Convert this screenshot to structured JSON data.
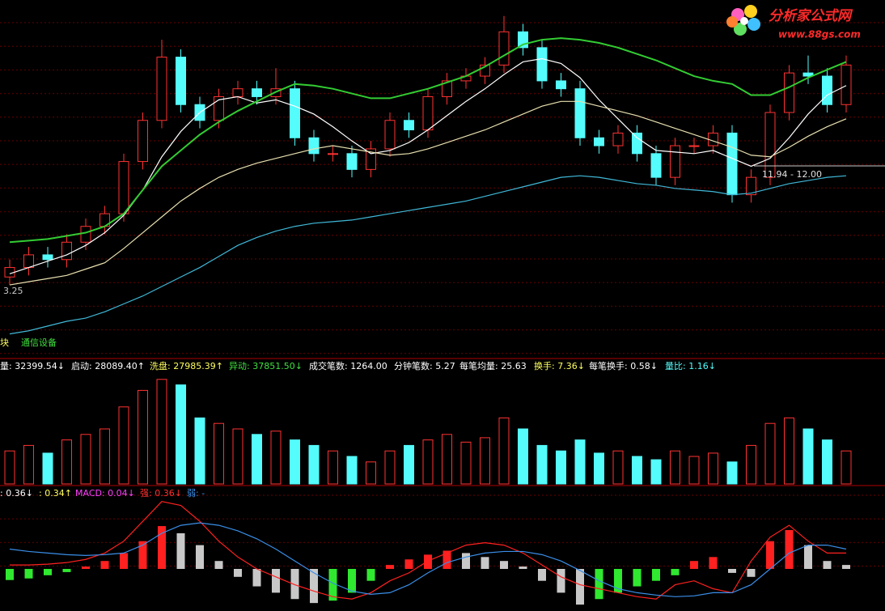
{
  "logo": {
    "title": "分析家公式网",
    "url": "www.88gs.com"
  },
  "chart_data": [
    {
      "type": "candlestick",
      "open": [
        5.0,
        5.6,
        6.4,
        6.1,
        7.2,
        8.2,
        9.0,
        12.3,
        14.9,
        18.9,
        15.9,
        14.9,
        16.4,
        16.9,
        16.4,
        16.9,
        13.8,
        12.8,
        12.8,
        11.8,
        13.1,
        14.9,
        14.3,
        16.4,
        17.4,
        17.7,
        18.4,
        20.5,
        19.5,
        17.4,
        16.9,
        13.8,
        13.3,
        14.1,
        12.8,
        11.3,
        13.3,
        13.3,
        14.1,
        10.2,
        11.3,
        15.4,
        17.9,
        17.7,
        15.9
      ],
      "high": [
        6.1,
        6.9,
        6.9,
        7.7,
        8.7,
        9.5,
        12.8,
        15.4,
        20.0,
        19.4,
        16.4,
        16.9,
        17.4,
        17.4,
        18.2,
        17.4,
        14.3,
        13.3,
        13.3,
        13.6,
        15.4,
        15.4,
        16.9,
        17.9,
        18.2,
        18.9,
        21.5,
        21.0,
        20.0,
        17.9,
        17.4,
        14.3,
        14.6,
        14.6,
        13.3,
        13.8,
        13.8,
        14.6,
        14.6,
        11.8,
        15.9,
        18.4,
        19.0,
        18.2,
        19.0
      ],
      "low": [
        4.5,
        5.1,
        5.6,
        5.6,
        6.7,
        7.7,
        8.5,
        11.8,
        14.4,
        15.4,
        14.4,
        14.4,
        15.9,
        15.9,
        15.9,
        13.3,
        12.3,
        12.3,
        11.3,
        11.3,
        12.6,
        13.8,
        13.8,
        15.9,
        16.9,
        17.2,
        17.9,
        19.0,
        16.9,
        16.4,
        13.3,
        12.8,
        12.8,
        12.3,
        10.8,
        10.8,
        12.8,
        12.8,
        9.7,
        9.7,
        10.8,
        14.9,
        17.2,
        15.4,
        15.4
      ],
      "close": [
        5.6,
        6.4,
        6.1,
        7.2,
        8.2,
        9.0,
        12.3,
        14.9,
        18.9,
        15.9,
        14.9,
        16.4,
        16.9,
        16.4,
        16.9,
        13.8,
        12.8,
        12.8,
        11.8,
        13.1,
        14.9,
        14.3,
        16.4,
        17.4,
        17.7,
        18.4,
        20.5,
        19.5,
        17.4,
        16.9,
        13.8,
        13.3,
        14.1,
        12.8,
        11.3,
        13.3,
        13.3,
        14.1,
        10.2,
        11.3,
        15.4,
        17.9,
        17.7,
        15.9,
        18.4
      ],
      "up_color": "#ff3232",
      "down_color": "#54fcfc",
      "ylim": [
        0,
        22
      ],
      "series": [
        {
          "color": "#ffffff",
          "values": [
            5.2,
            5.6,
            6.0,
            6.4,
            7.0,
            7.8,
            8.9,
            10.5,
            12.6,
            14.2,
            15.4,
            16.2,
            16.4,
            16.0,
            16.2,
            15.8,
            15.3,
            14.5,
            13.6,
            12.8,
            13.0,
            13.5,
            14.3,
            15.2,
            16.1,
            16.9,
            17.8,
            18.6,
            18.8,
            18.5,
            17.6,
            16.2,
            15.0,
            13.8,
            13.0,
            12.9,
            12.8,
            13.0,
            12.5,
            12.0,
            12.5,
            13.8,
            15.3,
            16.5,
            17.1
          ]
        },
        {
          "color": "#e8e0b0",
          "values": [
            4.5,
            4.7,
            4.9,
            5.1,
            5.5,
            5.9,
            6.8,
            7.8,
            8.8,
            9.8,
            10.6,
            11.3,
            11.8,
            12.2,
            12.5,
            12.8,
            13.1,
            13.3,
            13.1,
            12.9,
            12.7,
            12.8,
            13.1,
            13.5,
            13.9,
            14.3,
            14.8,
            15.3,
            15.8,
            16.1,
            16.1,
            15.8,
            15.5,
            15.2,
            14.8,
            14.4,
            14.0,
            13.6,
            13.2,
            12.7,
            12.6,
            13.2,
            13.9,
            14.5,
            15.0
          ]
        },
        {
          "color": "#33cc33",
          "values": [
            7.2,
            7.3,
            7.4,
            7.6,
            7.8,
            8.2,
            9.0,
            10.5,
            12.0,
            13.0,
            14.0,
            14.8,
            15.5,
            16.1,
            16.7,
            17.2,
            17.1,
            16.9,
            16.6,
            16.3,
            16.3,
            16.6,
            16.9,
            17.3,
            17.7,
            18.3,
            19.0,
            19.7,
            20.0,
            20.1,
            20.0,
            19.8,
            19.5,
            19.1,
            18.7,
            18.2,
            17.7,
            17.4,
            17.2,
            16.5,
            16.5,
            17.0,
            17.6,
            18.1,
            18.6
          ]
        },
        {
          "color": "#40b8d8",
          "values": [
            1.4,
            1.6,
            1.9,
            2.2,
            2.4,
            2.8,
            3.3,
            3.8,
            4.4,
            5.0,
            5.6,
            6.3,
            7.0,
            7.5,
            7.9,
            8.2,
            8.4,
            8.5,
            8.6,
            8.8,
            9.0,
            9.2,
            9.4,
            9.6,
            9.8,
            10.1,
            10.4,
            10.7,
            11.0,
            11.3,
            11.4,
            11.3,
            11.1,
            10.9,
            10.8,
            10.6,
            10.5,
            10.4,
            10.2,
            10.3,
            10.6,
            10.9,
            11.1,
            11.3,
            11.4
          ]
        }
      ],
      "annotations": [
        "3.25",
        "11.94 - 12.00"
      ],
      "sector_label": "块",
      "sector": "通信设备"
    },
    {
      "type": "bar",
      "values": [
        30000,
        35000,
        28000,
        40000,
        45000,
        50000,
        70000,
        85000,
        95000,
        90000,
        60000,
        55000,
        50000,
        45000,
        48000,
        40000,
        35000,
        30000,
        25000,
        20000,
        30000,
        35000,
        40000,
        45000,
        38000,
        42000,
        60000,
        50000,
        35000,
        30000,
        40000,
        28000,
        30000,
        25000,
        22000,
        30000,
        25000,
        28000,
        20000,
        35000,
        55000,
        60000,
        50000,
        40000,
        30000
      ],
      "ylim": [
        0,
        100000
      ],
      "indicators": [
        {
          "label": "量: 32399.54↓",
          "color": "#ffffff"
        },
        {
          "label": "启动: 28089.40↑",
          "color": "#ffffff"
        },
        {
          "label": "洗盘: 27985.39↑",
          "color": "#ffff60"
        },
        {
          "label": "异动: 37851.50↓",
          "color": "#40e040"
        },
        {
          "label": "成交笔数: 1264.00",
          "color": "#ffffff"
        },
        {
          "label": "分钟笔数: 5.27",
          "color": "#ffffff"
        },
        {
          "label": "每笔均量: 25.63",
          "color": "#ffffff"
        },
        {
          "label": "换手: 7.36↓",
          "color": "#ffff60"
        },
        {
          "label": "每笔换手: 0.58↓",
          "color": "#ffffff"
        },
        {
          "label": "量比: 1.16↓",
          "color": "#54fcfc"
        }
      ]
    },
    {
      "type": "macd",
      "values": [
        -0.14,
        -0.12,
        -0.08,
        -0.04,
        0.03,
        0.1,
        0.2,
        0.35,
        0.54,
        0.45,
        0.3,
        0.1,
        -0.1,
        -0.22,
        -0.3,
        -0.38,
        -0.43,
        -0.4,
        -0.3,
        -0.15,
        0.05,
        0.12,
        0.18,
        0.23,
        0.2,
        0.15,
        0.1,
        0.03,
        -0.15,
        -0.3,
        -0.45,
        -0.38,
        -0.3,
        -0.22,
        -0.15,
        -0.08,
        0.1,
        0.15,
        -0.05,
        -0.1,
        0.35,
        0.49,
        0.3,
        0.1,
        0.05
      ],
      "ylim": [
        -0.5,
        1.0
      ],
      "up_color": "#ff2020",
      "down_color": "#30e830",
      "fade_color": "#c8c8c8",
      "series": [
        {
          "color": "#ff2020",
          "values": [
            0.05,
            0.05,
            0.06,
            0.08,
            0.12,
            0.2,
            0.35,
            0.6,
            0.85,
            0.8,
            0.6,
            0.35,
            0.15,
            0.0,
            -0.1,
            -0.2,
            -0.28,
            -0.35,
            -0.38,
            -0.3,
            -0.15,
            -0.05,
            0.1,
            0.2,
            0.3,
            0.33,
            0.3,
            0.2,
            0.05,
            -0.1,
            -0.2,
            -0.25,
            -0.3,
            -0.35,
            -0.38,
            -0.2,
            -0.15,
            -0.25,
            -0.3,
            0.1,
            0.4,
            0.55,
            0.35,
            0.2,
            0.2
          ]
        },
        {
          "color": "#3a8ee8",
          "values": [
            0.25,
            0.22,
            0.2,
            0.18,
            0.17,
            0.18,
            0.2,
            0.3,
            0.45,
            0.55,
            0.58,
            0.55,
            0.48,
            0.38,
            0.25,
            0.1,
            -0.05,
            -0.18,
            -0.28,
            -0.32,
            -0.3,
            -0.2,
            -0.05,
            0.08,
            0.15,
            0.2,
            0.22,
            0.22,
            0.18,
            0.1,
            -0.02,
            -0.15,
            -0.25,
            -0.3,
            -0.33,
            -0.35,
            -0.34,
            -0.3,
            -0.3,
            -0.2,
            0.0,
            0.2,
            0.3,
            0.3,
            0.25
          ]
        }
      ],
      "indicators": [
        {
          "label": ": 0.36↓",
          "color": "#ffffff"
        },
        {
          "label": ": 0.34↑",
          "color": "#ffff60"
        },
        {
          "label": "MACD: 0.04↓",
          "color": "#ff40ff"
        },
        {
          "label": "强: 0.36↓",
          "color": "#ff3030"
        },
        {
          "label": "弱: -",
          "color": "#3a8ee8"
        }
      ]
    }
  ]
}
